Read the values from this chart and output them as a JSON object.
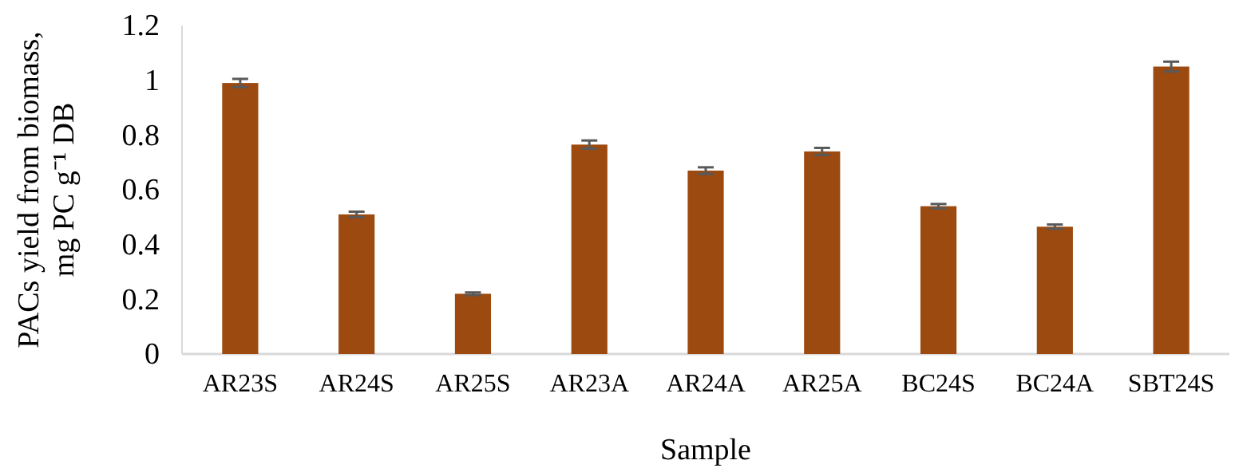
{
  "chart_data": {
    "type": "bar",
    "xlabel": "Sample",
    "ylabel": "PACs yield from biomass, mg PC g⁻¹ DB",
    "categories": [
      "AR23S",
      "AR24S",
      "AR25S",
      "AR23A",
      "AR24A",
      "AR25A",
      "BC24S",
      "BC24A",
      "SBT24S"
    ],
    "values": [
      0.99,
      0.51,
      0.22,
      0.765,
      0.67,
      0.74,
      0.54,
      0.465,
      1.05
    ],
    "errors": [
      0.015,
      0.01,
      0.005,
      0.015,
      0.012,
      0.013,
      0.008,
      0.008,
      0.018
    ],
    "color": "#9c4a10",
    "ylim": [
      0,
      1.2
    ],
    "yticks": [
      0,
      0.2,
      0.4,
      0.6,
      0.8,
      1,
      1.2
    ],
    "grid": false
  }
}
